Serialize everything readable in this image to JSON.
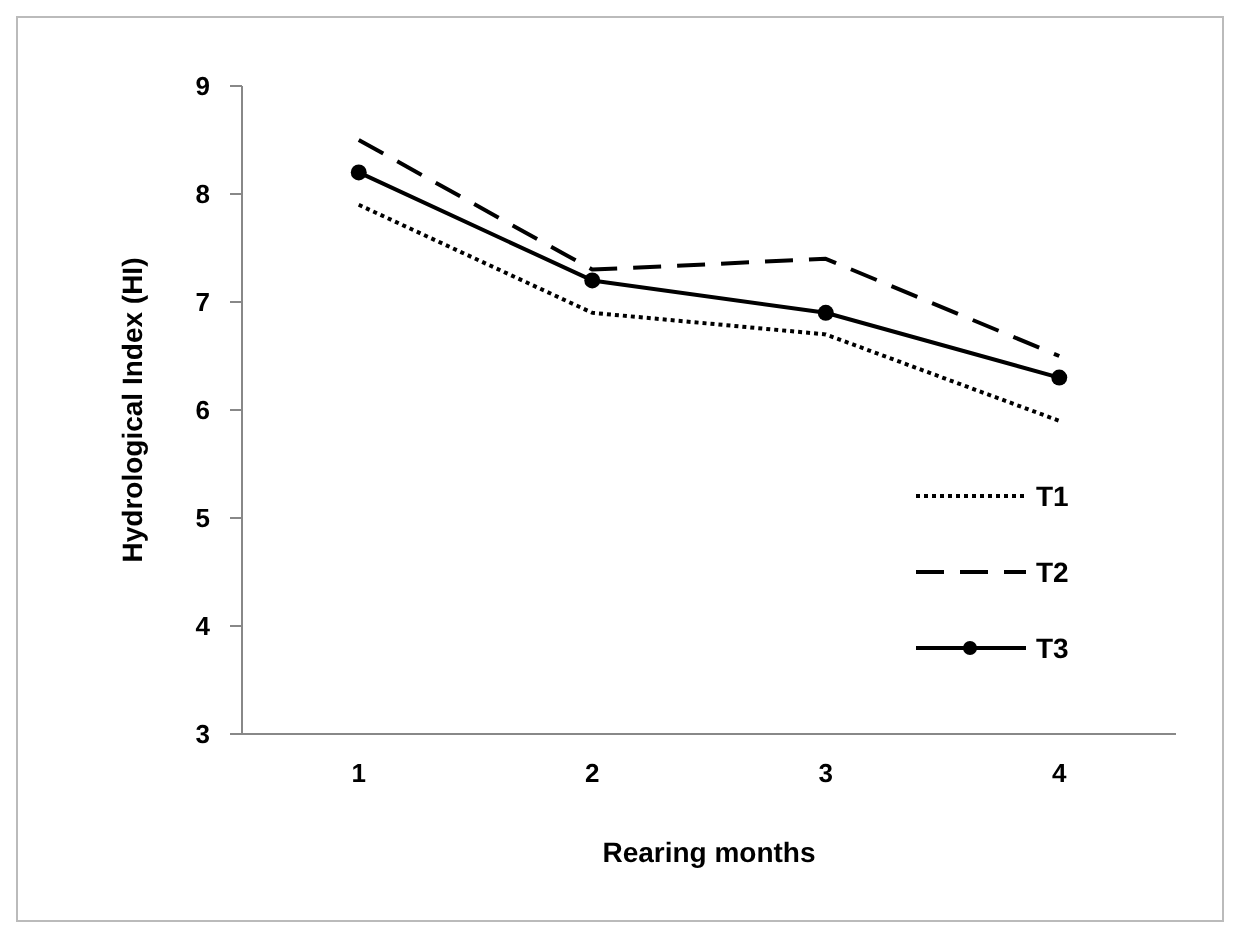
{
  "chart_data": {
    "type": "line",
    "xlabel": "Rearing months",
    "ylabel": "Hydrological Index (HI)",
    "categories": [
      "1",
      "2",
      "3",
      "4"
    ],
    "series": [
      {
        "name": "T1",
        "color": "#000000",
        "values": [
          7.9,
          6.9,
          6.7,
          5.9
        ],
        "line_style": "dotted",
        "marker": "none"
      },
      {
        "name": "T2",
        "color": "#000000",
        "values": [
          8.5,
          7.3,
          7.4,
          6.5
        ],
        "line_style": "dashed",
        "marker": "none"
      },
      {
        "name": "T3",
        "color": "#000000",
        "values": [
          8.2,
          7.2,
          6.9,
          6.3
        ],
        "line_style": "solid",
        "marker": "circle"
      }
    ],
    "ylim": [
      3,
      9
    ],
    "yticks": [
      3,
      4,
      5,
      6,
      7,
      8,
      9
    ],
    "grid": false,
    "legend": "right"
  }
}
